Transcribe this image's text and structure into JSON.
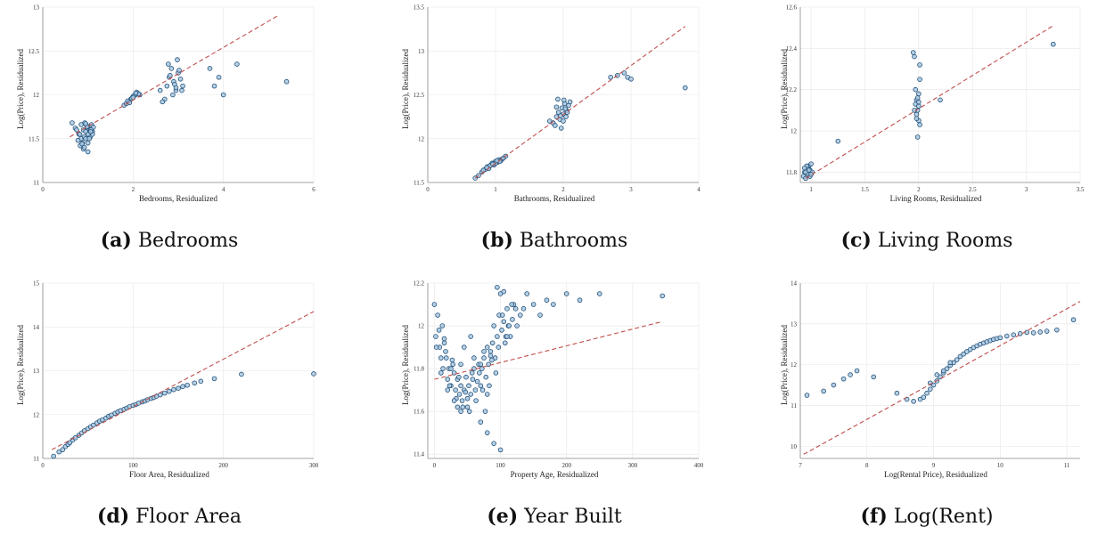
{
  "colors": {
    "point_fill": "#a9c8df",
    "point_stroke": "#1f4e79",
    "fit_line": "#c0504d",
    "grid": "#e6e6e6"
  },
  "chart_data": [
    {
      "type": "scatter",
      "letter": "(a)",
      "caption": "Bedrooms",
      "xlabel": "Bedrooms, Residualized",
      "ylabel": "Log(Price), Residualized",
      "xlim": [
        0,
        6
      ],
      "ylim": [
        11,
        13
      ],
      "xticks": [
        0,
        2,
        4,
        6
      ],
      "yticks": [
        11,
        11.5,
        12,
        12.5,
        13
      ],
      "xtick_labels": [
        "0",
        "2",
        "4",
        "6"
      ],
      "ytick_labels": [
        "11",
        "11.5",
        "12",
        "12.5",
        "13"
      ],
      "fit_line": {
        "x": [
          0.6,
          5.2
        ],
        "y": [
          11.52,
          12.9
        ]
      },
      "x": [
        0.65,
        0.72,
        0.8,
        0.85,
        0.88,
        0.9,
        0.92,
        0.95,
        0.97,
        1.0,
        1.02,
        1.05,
        1.08,
        1.1,
        1.12,
        0.78,
        0.83,
        0.9,
        0.95,
        1.0,
        1.05,
        0.85,
        0.93,
        1.0,
        1.07,
        0.75,
        0.82,
        0.98,
        1.03,
        0.87,
        0.95,
        1.1,
        0.92,
        1.0,
        1.06,
        1.8,
        1.85,
        1.9,
        1.95,
        2.0,
        2.05,
        2.1,
        2.15,
        1.88,
        1.97,
        2.02,
        2.08,
        2.12,
        1.92,
        2.0,
        2.06,
        2.7,
        2.75,
        2.8,
        2.85,
        2.9,
        2.95,
        3.0,
        3.05,
        3.1,
        2.78,
        2.88,
        2.95,
        3.02,
        2.82,
        2.92,
        2.98,
        3.08,
        2.6,
        2.65,
        3.7,
        3.8,
        3.9,
        4.0,
        4.3,
        5.4
      ],
      "y": [
        11.68,
        11.62,
        11.55,
        11.5,
        11.45,
        11.6,
        11.52,
        11.58,
        11.65,
        11.62,
        11.55,
        11.6,
        11.66,
        11.58,
        11.63,
        11.48,
        11.42,
        11.38,
        11.5,
        11.45,
        11.52,
        11.66,
        11.68,
        11.55,
        11.6,
        11.6,
        11.55,
        11.64,
        11.5,
        11.44,
        11.67,
        11.55,
        11.4,
        11.35,
        11.58,
        11.88,
        11.9,
        11.92,
        11.95,
        11.98,
        12.0,
        12.02,
        12.0,
        11.93,
        11.96,
        11.99,
        12.03,
        12.01,
        11.91,
        11.97,
        12.02,
        11.95,
        12.1,
        12.2,
        12.3,
        12.15,
        12.05,
        12.25,
        12.18,
        12.1,
        12.35,
        12.0,
        12.08,
        12.28,
        12.22,
        12.12,
        12.4,
        12.05,
        12.05,
        11.92,
        12.3,
        12.1,
        12.2,
        12.0,
        12.35,
        12.15
      ]
    },
    {
      "type": "scatter",
      "letter": "(b)",
      "caption": "Bathrooms",
      "xlabel": "Bathrooms, Residualized",
      "ylabel": "Log(Price), Residualized",
      "xlim": [
        0,
        4
      ],
      "ylim": [
        11.5,
        13.5
      ],
      "xticks": [
        0,
        1,
        2,
        3,
        4
      ],
      "yticks": [
        11.5,
        12,
        12.5,
        13,
        13.5
      ],
      "xtick_labels": [
        "0",
        "1",
        "2",
        "3",
        "4"
      ],
      "ytick_labels": [
        "11.5",
        "12",
        "12.5",
        "13",
        "13.5"
      ],
      "fit_line": {
        "x": [
          0.7,
          3.8
        ],
        "y": [
          11.55,
          13.28
        ]
      },
      "x": [
        0.7,
        0.75,
        0.8,
        0.85,
        0.88,
        0.9,
        0.93,
        0.95,
        0.98,
        1.0,
        1.03,
        1.05,
        1.08,
        1.1,
        1.12,
        1.15,
        0.82,
        0.92,
        1.0,
        1.06,
        0.87,
        0.96,
        1.02,
        1.8,
        1.85,
        1.9,
        1.93,
        1.95,
        1.98,
        2.0,
        2.02,
        2.05,
        2.08,
        2.1,
        1.88,
        1.96,
        2.03,
        1.92,
        2.0,
        2.06,
        1.97,
        2.04,
        1.9,
        2.01,
        2.7,
        2.8,
        2.9,
        2.95,
        3.0,
        3.8
      ],
      "y": [
        11.55,
        11.58,
        11.62,
        11.65,
        11.68,
        11.66,
        11.7,
        11.72,
        11.7,
        11.74,
        11.73,
        11.76,
        11.75,
        11.77,
        11.78,
        11.8,
        11.64,
        11.69,
        11.72,
        11.74,
        11.67,
        11.71,
        11.75,
        12.2,
        12.18,
        12.25,
        12.3,
        12.22,
        12.35,
        12.28,
        12.4,
        12.32,
        12.38,
        12.42,
        12.15,
        12.26,
        12.34,
        12.45,
        12.2,
        12.3,
        12.12,
        12.25,
        12.36,
        12.44,
        12.7,
        12.72,
        12.75,
        12.7,
        12.68,
        12.58
      ]
    },
    {
      "type": "scatter",
      "letter": "(c)",
      "caption": "Living Rooms",
      "xlabel": "Living Rooms, Residualized",
      "ylabel": "Log(Price), Residualized",
      "xlim": [
        0.9,
        3.5
      ],
      "ylim": [
        11.75,
        12.6
      ],
      "xticks": [
        1,
        1.5,
        2,
        2.5,
        3,
        3.5
      ],
      "yticks": [
        11.8,
        12,
        12.2,
        12.4,
        12.6
      ],
      "xtick_labels": [
        "1",
        "1.5",
        "2",
        "2.5",
        "3",
        "3.5"
      ],
      "ytick_labels": [
        "11.8",
        "12",
        "12.2",
        "12.4",
        "12.6"
      ],
      "fit_line": {
        "x": [
          0.95,
          3.25
        ],
        "y": [
          11.77,
          12.51
        ]
      },
      "x": [
        0.93,
        0.94,
        0.95,
        0.96,
        0.97,
        0.98,
        0.99,
        1.0,
        1.01,
        0.95,
        0.97,
        0.99,
        0.96,
        0.98,
        1.0,
        0.94,
        1.25,
        1.95,
        1.96,
        1.97,
        1.98,
        1.99,
        2.0,
        2.0,
        2.01,
        1.97,
        1.98,
        1.99,
        2.0,
        2.01,
        1.96,
        1.99,
        2.0,
        1.98,
        2.01,
        2.2,
        3.25
      ],
      "y": [
        11.78,
        11.8,
        11.77,
        11.82,
        11.79,
        11.83,
        11.81,
        11.84,
        11.8,
        11.8,
        11.82,
        11.78,
        11.83,
        11.81,
        11.79,
        11.82,
        11.95,
        12.38,
        12.36,
        12.2,
        12.15,
        12.1,
        12.05,
        12.18,
        12.25,
        12.13,
        12.08,
        12.16,
        12.12,
        12.03,
        12.1,
        11.97,
        12.14,
        12.06,
        12.32,
        12.15,
        12.42
      ]
    },
    {
      "type": "scatter",
      "letter": "(d)",
      "caption": "Floor Area",
      "xlabel": "Floor Area, Residualized",
      "ylabel": "Log(Price), Residualized",
      "xlim": [
        0,
        300
      ],
      "ylim": [
        11,
        15
      ],
      "xticks": [
        0,
        100,
        200,
        300
      ],
      "yticks": [
        11,
        12,
        13,
        14,
        15
      ],
      "xtick_labels": [
        "0",
        "100",
        "200",
        "300"
      ],
      "ytick_labels": [
        "11",
        "12",
        "13",
        "14",
        "15"
      ],
      "fit_line": {
        "x": [
          10,
          300
        ],
        "y": [
          11.2,
          14.35
        ]
      },
      "x": [
        12,
        18,
        22,
        25,
        28,
        30,
        33,
        36,
        40,
        43,
        46,
        50,
        53,
        56,
        60,
        63,
        66,
        70,
        73,
        76,
        80,
        83,
        86,
        90,
        93,
        96,
        100,
        103,
        106,
        110,
        113,
        116,
        120,
        123,
        126,
        130,
        135,
        140,
        145,
        150,
        155,
        160,
        168,
        175,
        190,
        220,
        300
      ],
      "y": [
        11.05,
        11.15,
        11.2,
        11.27,
        11.32,
        11.36,
        11.42,
        11.47,
        11.53,
        11.58,
        11.63,
        11.68,
        11.72,
        11.76,
        11.81,
        11.85,
        11.88,
        11.92,
        11.96,
        11.99,
        12.03,
        12.06,
        12.09,
        12.12,
        12.15,
        12.18,
        12.21,
        12.23,
        12.26,
        12.29,
        12.31,
        12.34,
        12.37,
        12.39,
        12.42,
        12.45,
        12.49,
        12.53,
        12.57,
        12.6,
        12.64,
        12.67,
        12.72,
        12.76,
        12.82,
        12.92,
        12.93
      ]
    },
    {
      "type": "scatter",
      "letter": "(e)",
      "caption": "Year Built",
      "xlabel": "Property Age, Residualized",
      "ylabel": "Log(Price), Residualized",
      "xlim": [
        -10,
        400
      ],
      "ylim": [
        11.38,
        12.2
      ],
      "xticks": [
        0,
        100,
        200,
        300,
        400
      ],
      "yticks": [
        11.4,
        11.6,
        11.8,
        12,
        12.2
      ],
      "xtick_labels": [
        "0",
        "100",
        "200",
        "300",
        "400"
      ],
      "ytick_labels": [
        "11.4",
        "11.6",
        "11.8",
        "12",
        "12.2"
      ],
      "fit_line": {
        "x": [
          0,
          345
        ],
        "y": [
          11.75,
          12.02
        ]
      },
      "x": [
        0,
        2,
        5,
        8,
        10,
        12,
        15,
        18,
        20,
        22,
        25,
        28,
        30,
        32,
        35,
        38,
        40,
        42,
        45,
        48,
        50,
        52,
        55,
        58,
        60,
        62,
        65,
        68,
        70,
        72,
        75,
        78,
        80,
        82,
        85,
        88,
        90,
        92,
        95,
        98,
        100,
        102,
        105,
        108,
        110,
        112,
        115,
        118,
        120,
        125,
        130,
        135,
        140,
        150,
        160,
        170,
        180,
        200,
        220,
        250,
        345,
        3,
        7,
        13,
        17,
        23,
        27,
        33,
        37,
        43,
        47,
        53,
        57,
        63,
        67,
        73,
        77,
        83,
        87,
        93,
        97,
        103,
        107,
        113,
        117,
        123,
        10,
        20,
        30,
        40,
        50,
        60,
        70,
        80,
        90,
        100,
        110,
        70,
        75,
        80,
        85,
        40,
        45,
        55,
        25,
        35,
        15,
        95,
        105
      ],
      "y": [
        12.1,
        11.95,
        12.05,
        11.9,
        11.85,
        12.0,
        11.92,
        11.85,
        11.75,
        11.8,
        11.72,
        11.82,
        11.78,
        11.7,
        11.75,
        11.68,
        11.72,
        11.65,
        11.7,
        11.76,
        11.66,
        11.72,
        11.68,
        11.75,
        11.8,
        11.7,
        11.74,
        11.78,
        11.72,
        11.8,
        11.85,
        11.76,
        11.9,
        11.82,
        11.88,
        11.92,
        12.0,
        11.85,
        11.95,
        12.05,
        12.15,
        11.98,
        12.02,
        11.95,
        12.08,
        12.0,
        11.95,
        12.03,
        12.1,
        12.0,
        12.05,
        12.08,
        12.15,
        12.1,
        12.05,
        12.12,
        12.1,
        12.15,
        12.12,
        12.15,
        12.14,
        11.9,
        11.98,
        11.8,
        11.88,
        11.72,
        11.84,
        11.66,
        11.76,
        11.62,
        11.69,
        11.6,
        11.78,
        11.65,
        11.82,
        11.7,
        11.6,
        11.72,
        11.84,
        11.78,
        11.9,
        12.05,
        11.92,
        12.0,
        12.1,
        12.08,
        11.78,
        11.7,
        11.65,
        11.6,
        11.62,
        11.85,
        11.55,
        11.5,
        11.45,
        11.42,
        11.95,
        11.82,
        11.88,
        11.68,
        11.86,
        11.82,
        11.9,
        11.95,
        11.8,
        11.62,
        11.94,
        12.18,
        12.16
      ]
    },
    {
      "type": "scatter",
      "letter": "(f)",
      "caption": "Log(Rent)",
      "xlabel": "Log(Rental Price), Residualized",
      "ylabel": "Log(Price), Residualized",
      "xlim": [
        7,
        11.2
      ],
      "ylim": [
        9.7,
        14
      ],
      "xticks": [
        7,
        8,
        9,
        10,
        11
      ],
      "yticks": [
        10,
        11,
        12,
        13,
        14
      ],
      "xtick_labels": [
        "7",
        "8",
        "9",
        "10",
        "11"
      ],
      "ytick_labels": [
        "10",
        "11",
        "12",
        "13",
        "14"
      ],
      "fit_line": {
        "x": [
          7.05,
          11.2
        ],
        "y": [
          9.8,
          13.55
        ]
      },
      "x": [
        7.1,
        7.35,
        7.5,
        7.65,
        7.75,
        7.85,
        8.1,
        8.45,
        8.6,
        8.7,
        8.8,
        8.85,
        8.9,
        8.95,
        9.0,
        9.05,
        9.1,
        9.15,
        9.2,
        9.25,
        9.3,
        9.35,
        9.4,
        9.45,
        9.5,
        9.55,
        9.6,
        9.65,
        9.7,
        9.75,
        9.8,
        9.85,
        9.9,
        9.95,
        10.0,
        10.1,
        10.2,
        10.3,
        10.4,
        10.5,
        10.6,
        10.7,
        10.85,
        11.1,
        8.95,
        9.05,
        9.15,
        9.25
      ],
      "y": [
        11.25,
        11.35,
        11.5,
        11.65,
        11.75,
        11.85,
        11.7,
        11.3,
        11.15,
        11.1,
        11.15,
        11.2,
        11.3,
        11.4,
        11.5,
        11.6,
        11.7,
        11.8,
        11.9,
        11.98,
        12.05,
        12.12,
        12.2,
        12.26,
        12.32,
        12.37,
        12.42,
        12.46,
        12.5,
        12.53,
        12.56,
        12.59,
        12.62,
        12.64,
        12.66,
        12.7,
        12.73,
        12.76,
        12.79,
        12.78,
        12.8,
        12.82,
        12.85,
        13.1,
        11.55,
        11.75,
        11.85,
        12.05
      ]
    }
  ]
}
